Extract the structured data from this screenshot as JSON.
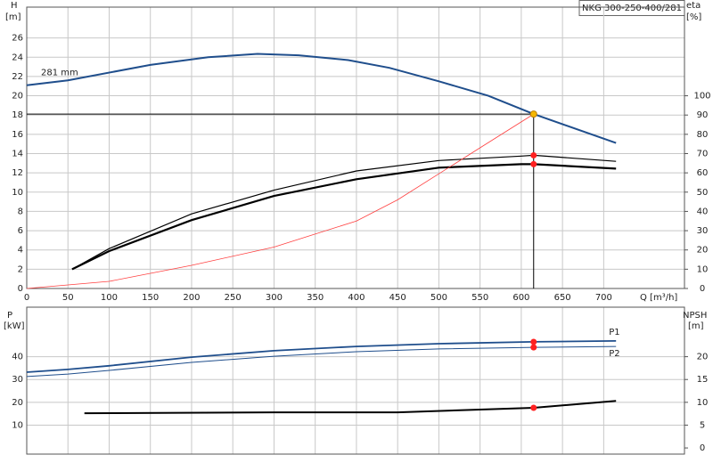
{
  "chart_data": [
    {
      "type": "line",
      "title": "NKG 300-250-400/281",
      "xlabel": "Q [m³/h]",
      "ylabel": "H",
      "yunit": "[m]",
      "y2label": "eta",
      "y2unit": "[%]",
      "xlim": [
        0,
        798
      ],
      "xticks": [
        0,
        50,
        100,
        150,
        200,
        250,
        300,
        350,
        400,
        450,
        500,
        550,
        600,
        650,
        700
      ],
      "ylim": [
        0,
        29.2
      ],
      "yticks": [
        0,
        2,
        4,
        6,
        8,
        10,
        12,
        14,
        16,
        18,
        20,
        22,
        24,
        26
      ],
      "y2lim": [
        0,
        146
      ],
      "y2ticks": [
        0,
        10,
        20,
        30,
        40,
        50,
        60,
        70,
        80,
        90,
        100
      ],
      "grid": true,
      "series": [
        {
          "name": "281 mm",
          "color": "#1f4e8c",
          "line_width": 2,
          "x": [
            0,
            50,
            150,
            220,
            280,
            330,
            390,
            440,
            500,
            560,
            615,
            715
          ],
          "values": [
            21.1,
            21.6,
            23.2,
            24.0,
            24.35,
            24.2,
            23.7,
            22.9,
            21.5,
            20.0,
            18.1,
            15.1
          ],
          "markers": [
            {
              "x": 615,
              "y": 18.1,
              "color": "#f5b800"
            }
          ]
        },
        {
          "color": "#000000",
          "axis": "y2",
          "line_width": 1.2,
          "x": [
            55,
            100,
            200,
            300,
            400,
            500,
            600,
            615,
            715
          ],
          "values": [
            10,
            20.7,
            38.7,
            51,
            61,
            66.4,
            68.7,
            69.1,
            66
          ],
          "markers": [
            {
              "x": 615,
              "y": 69.1,
              "color": "#ff2020"
            }
          ]
        },
        {
          "color": "#000000",
          "axis": "y2",
          "line_width": 2.2,
          "x": [
            55,
            100,
            200,
            300,
            400,
            500,
            600,
            615,
            715
          ],
          "values": [
            10,
            19.4,
            35.5,
            48,
            56.7,
            62.7,
            64.5,
            64.5,
            62.2
          ],
          "markers": [
            {
              "x": 615,
              "y": 64.5,
              "color": "#ff2020"
            }
          ]
        },
        {
          "color": "#ff4040",
          "line_width": 0.8,
          "x": [
            0,
            100,
            200,
            300,
            400,
            450,
            500,
            550,
            615
          ],
          "values": [
            0,
            0.74,
            2.4,
            4.3,
            7.0,
            9.2,
            11.9,
            14.6,
            18.1
          ]
        }
      ]
    },
    {
      "type": "line",
      "ylabel": "P",
      "yunit": "[kW]",
      "y2label": "NPSH",
      "y2unit": "[m]",
      "xlim": [
        0,
        798
      ],
      "ylim": [
        -2.7,
        61.7
      ],
      "yticks": [
        10,
        20,
        30,
        40
      ],
      "y2lim": [
        -1.35,
        30.85
      ],
      "y2ticks": [
        0,
        5,
        10,
        15,
        20
      ],
      "grid": true,
      "series": [
        {
          "name": "P1",
          "color": "#1f4e8c",
          "line_width": 1.8,
          "x": [
            0,
            50,
            100,
            200,
            300,
            400,
            500,
            615,
            715
          ],
          "values": [
            33.2,
            34.4,
            36,
            39.8,
            42.6,
            44.5,
            45.7,
            46.5,
            46.9
          ],
          "markers": [
            {
              "x": 615,
              "y": 46.5,
              "color": "#ff2020"
            }
          ]
        },
        {
          "name": "P2",
          "color": "#1f4e8c",
          "line_width": 1,
          "x": [
            0,
            50,
            100,
            200,
            300,
            400,
            500,
            615,
            715
          ],
          "values": [
            31.3,
            32.4,
            34,
            37.5,
            40.2,
            42.2,
            43.4,
            44.1,
            44.5
          ],
          "markers": [
            {
              "x": 615,
              "y": 44.1,
              "color": "#ff2020"
            }
          ]
        },
        {
          "color": "#000000",
          "axis": "y2",
          "line_width": 2,
          "x": [
            70,
            300,
            450,
            550,
            615,
            715
          ],
          "values": [
            7.6,
            7.8,
            7.8,
            8.4,
            8.8,
            10.3
          ],
          "markers": [
            {
              "x": 615,
              "y": 8.8,
              "color": "#ff2020"
            }
          ]
        }
      ]
    }
  ]
}
